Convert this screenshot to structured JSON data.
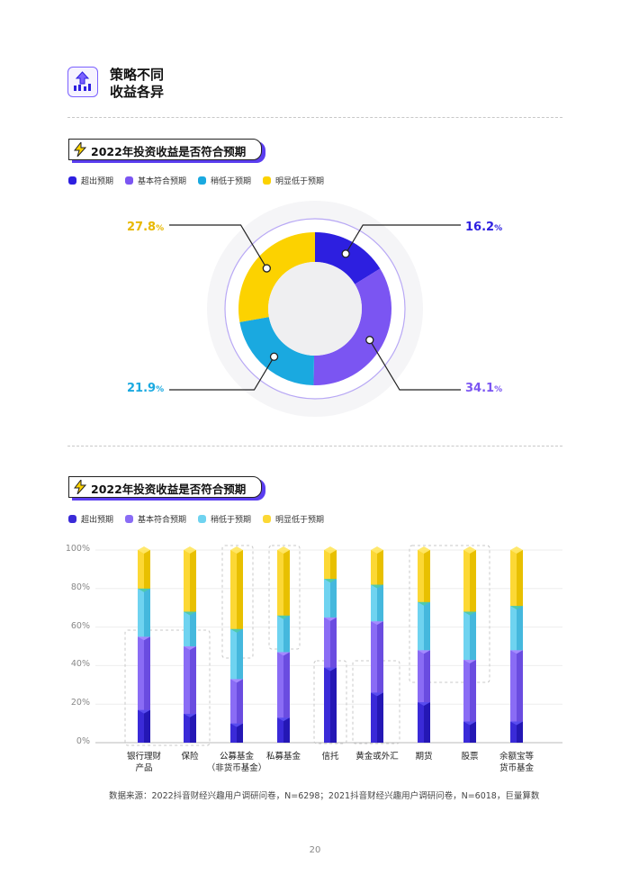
{
  "section": {
    "title_line1": "策略不同",
    "title_line2": "收益各异",
    "icon": "chart-up-icon"
  },
  "colors": {
    "exceed": "#2d1fe0",
    "meet": "#7b55f2",
    "slightly": "#1aa9e0",
    "below": "#fcd200"
  },
  "legend": [
    "超出预期",
    "基本符合预期",
    "稍低于预期",
    "明显低于预期"
  ],
  "donut": {
    "title": "2022年投资收益是否符合预期"
  },
  "bars": {
    "title": "2022年投资收益是否符合预期"
  },
  "source": "数据来源：2022抖音财经兴趣用户调研问卷，N=6298；2021抖音财经兴趣用户调研问卷，N=6018，巨量算数",
  "page_number": "20",
  "chart_data": [
    {
      "type": "pie",
      "title": "2022年投资收益是否符合预期",
      "categories": [
        "超出预期",
        "基本符合预期",
        "稍低于预期",
        "明显低于预期"
      ],
      "values": [
        16.2,
        34.1,
        21.9,
        27.8
      ],
      "labels": [
        "16.2",
        "34.1",
        "21.9",
        "27.8"
      ],
      "unit": "%",
      "legend": "top-left"
    },
    {
      "type": "bar",
      "stacked": true,
      "title": "2022年投资收益是否符合预期",
      "categories": [
        [
          "银行理财",
          "产品"
        ],
        [
          "保险"
        ],
        [
          "公募基金",
          "（非货币基金）"
        ],
        [
          "私募基金"
        ],
        [
          "信托"
        ],
        [
          "黄金或外汇"
        ],
        [
          "期货"
        ],
        [
          "股票"
        ],
        [
          "余额宝等",
          "货币基金"
        ]
      ],
      "series": [
        {
          "name": "超出预期",
          "values": [
            17,
            15,
            10,
            13,
            39,
            26,
            21,
            11,
            11
          ]
        },
        {
          "name": "基本符合预期",
          "values": [
            38,
            35,
            23,
            34,
            26,
            37,
            27,
            32,
            37
          ]
        },
        {
          "name": "稍低于预期",
          "values": [
            25,
            18,
            26,
            19,
            20,
            19,
            25,
            25,
            23
          ]
        },
        {
          "name": "明显低于预期",
          "values": [
            20,
            32,
            41,
            34,
            15,
            18,
            27,
            32,
            29
          ]
        }
      ],
      "yticks": [
        "0%",
        "20%",
        "40%",
        "60%",
        "80%",
        "100%"
      ],
      "ylim": [
        0,
        100
      ],
      "grid": true,
      "legend": "top-left"
    }
  ]
}
